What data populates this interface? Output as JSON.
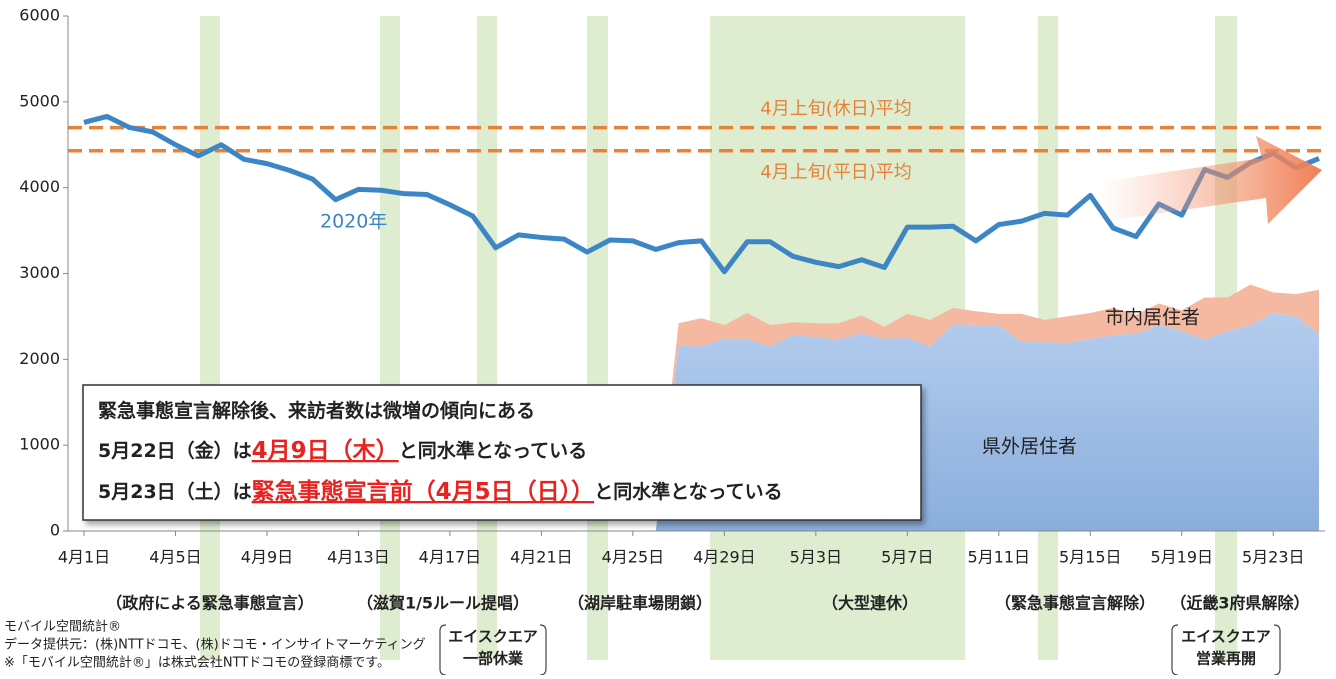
{
  "chart_data": {
    "type": "line_area",
    "categories": [
      "4月1日",
      null,
      null,
      null,
      "4月5日",
      null,
      null,
      null,
      "4月9日",
      null,
      null,
      null,
      "4月13日",
      null,
      null,
      null,
      "4月17日",
      null,
      null,
      null,
      "4月21日",
      null,
      null,
      null,
      "4月25日",
      null,
      null,
      null,
      "4月29日",
      null,
      null,
      null,
      "5月3日",
      null,
      null,
      null,
      "5月7日",
      null,
      null,
      null,
      "5月11日",
      null,
      null,
      null,
      "5月15日",
      null,
      null,
      null,
      "5月19日",
      null,
      null,
      null,
      "5月23日",
      null,
      null
    ],
    "series": [
      {
        "name": "2020年",
        "kind": "line",
        "color": "#3d86c6",
        "values": [
          4760,
          4830,
          4700,
          4650,
          4500,
          4370,
          4500,
          4330,
          4280,
          4200,
          4100,
          3860,
          3980,
          3970,
          3930,
          3920,
          3800,
          3670,
          3300,
          3450,
          3420,
          3400,
          3250,
          3390,
          3380,
          3280,
          3360,
          3380,
          3020,
          3370,
          3370,
          3200,
          3130,
          3080,
          3160,
          3070,
          3540,
          3540,
          3550,
          3380,
          3570,
          3610,
          3700,
          3680,
          3910,
          3530,
          3430,
          3810,
          3680,
          4210,
          4120,
          4290,
          4400,
          4230,
          4340
        ]
      },
      {
        "name": "市内居住者",
        "kind": "area",
        "color": "#9dbde6",
        "values": [
          null,
          null,
          null,
          null,
          null,
          null,
          null,
          null,
          null,
          null,
          null,
          null,
          null,
          null,
          null,
          null,
          null,
          null,
          null,
          null,
          null,
          null,
          null,
          null,
          null,
          0,
          2160,
          2150,
          2240,
          2240,
          2150,
          2280,
          2260,
          2230,
          2300,
          2240,
          2250,
          2150,
          2410,
          2400,
          2400,
          2200,
          2200,
          2190,
          2240,
          2280,
          2300,
          2400,
          2330,
          2230,
          2330,
          2400,
          2540,
          2500,
          2300
        ]
      },
      {
        "name": "県外居住者",
        "kind": "area",
        "color": "#f5b8a0",
        "values": [
          null,
          null,
          null,
          null,
          null,
          null,
          null,
          null,
          null,
          null,
          null,
          null,
          null,
          null,
          null,
          null,
          null,
          null,
          null,
          null,
          null,
          null,
          null,
          null,
          null,
          0,
          260,
          330,
          160,
          300,
          250,
          150,
          160,
          190,
          210,
          140,
          280,
          310,
          190,
          160,
          130,
          330,
          260,
          310,
          300,
          320,
          220,
          250,
          240,
          490,
          390,
          470,
          240,
          260,
          510
        ]
      }
    ],
    "reference_lines": [
      {
        "label": "4月上旬(休日)平均",
        "value": 4700,
        "color": "#e8823a"
      },
      {
        "label": "4月上旬(平日)平均",
        "value": 4430,
        "color": "#e8823a"
      }
    ],
    "ylim": [
      0,
      6000
    ],
    "yticks": [
      0,
      1000,
      2000,
      3000,
      4000,
      5000,
      6000
    ],
    "grid": false,
    "annotations": [
      "（政府による緊急事態宣言）",
      "（滋賀1/5ルール提唱）",
      "（湖岸駐車場閉鎖）",
      "（大型連休）",
      "（緊急事態宣言解除）",
      "（近畿3府県解除）"
    ],
    "callouts": [
      [
        "エイスクエア",
        "一部休業"
      ],
      [
        "エイスクエア",
        "営業再開"
      ]
    ],
    "text_box": [
      [
        {
          "text": "緊急事態宣言解除後、来訪者数は微増の傾向にある"
        }
      ],
      [
        {
          "text": "5月22日（金）は"
        },
        {
          "text": "4月9日（木）",
          "highlight": true
        },
        {
          "text": "と同水準となっている"
        }
      ],
      [
        {
          "text": "5月23日（土）は"
        },
        {
          "text": "緊急事態宣言前（4月5日（日））",
          "highlight": true
        },
        {
          "text": "と同水準となっている"
        }
      ]
    ],
    "source": [
      "モバイル空間統計®",
      "データ提供元：(株)NTTドコモ、(株)ドコモ・インサイトマーケティング",
      "※「モバイル空間統計®」は株式会社NTTドコモの登録商標です。"
    ]
  }
}
